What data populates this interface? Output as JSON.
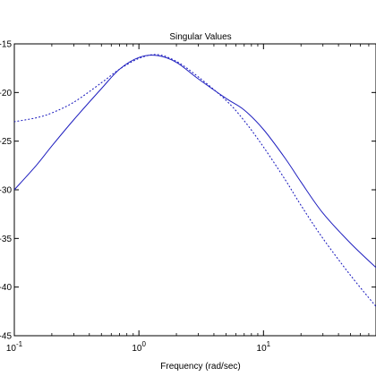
{
  "chart_data": {
    "type": "line",
    "title": "Singular Values",
    "xlabel": "Frequency (rad/sec)",
    "ylabel": "",
    "x_scale": "log",
    "xlim": [
      0.1,
      80
    ],
    "ylim": [
      -45,
      -15
    ],
    "x_ticks": [
      {
        "value": 0.1,
        "base": "10",
        "exp": "-1"
      },
      {
        "value": 1,
        "base": "10",
        "exp": "0"
      },
      {
        "value": 10,
        "base": "10",
        "exp": "1"
      }
    ],
    "y_ticks": [
      {
        "value": -15,
        "label": "-15"
      },
      {
        "value": -20,
        "label": "-20"
      },
      {
        "value": -25,
        "label": "-25"
      },
      {
        "value": -30,
        "label": "-30"
      },
      {
        "value": -35,
        "label": "-35"
      },
      {
        "value": -40,
        "label": "-40"
      },
      {
        "value": -45,
        "label": "-45"
      }
    ],
    "grid": false,
    "legend": false,
    "series": [
      {
        "style": "solid",
        "color": "#1f1fbf",
        "x": [
          0.1,
          0.15,
          0.2,
          0.3,
          0.5,
          0.7,
          1.0,
          1.4,
          2.0,
          3.0,
          5.0,
          7.0,
          10,
          15,
          20,
          30,
          50,
          80
        ],
        "y": [
          -30.0,
          -27.5,
          -25.5,
          -22.8,
          -19.6,
          -17.6,
          -16.4,
          -16.2,
          -16.9,
          -18.6,
          -20.6,
          -21.8,
          -23.8,
          -26.8,
          -29.2,
          -32.4,
          -35.5,
          -38.0
        ]
      },
      {
        "style": "dotted",
        "color": "#1f1fbf",
        "x": [
          0.1,
          0.15,
          0.2,
          0.3,
          0.5,
          0.7,
          1.0,
          1.4,
          2.0,
          3.0,
          5.0,
          7.0,
          10,
          15,
          20,
          30,
          50,
          80
        ],
        "y": [
          -23.0,
          -22.6,
          -22.1,
          -21.0,
          -19.0,
          -17.6,
          -16.5,
          -16.1,
          -16.8,
          -18.4,
          -20.8,
          -22.9,
          -25.6,
          -29.0,
          -31.6,
          -35.0,
          -38.8,
          -42.0
        ]
      }
    ]
  }
}
